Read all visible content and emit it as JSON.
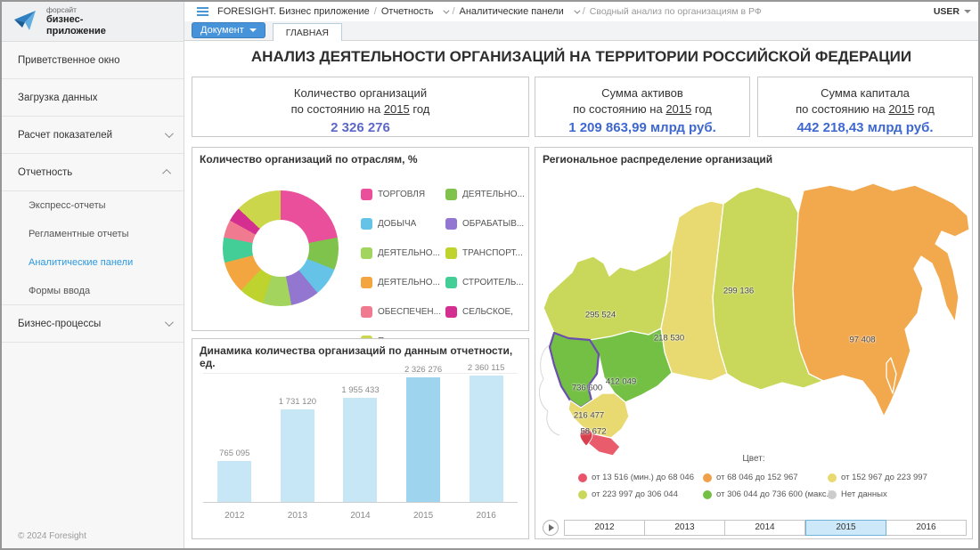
{
  "window": {
    "user_label": "USER"
  },
  "sidebar": {
    "brand_small": "форсайт",
    "brand_bold": "бизнес-приложение",
    "footer": "© 2024 Foresight",
    "items": [
      {
        "name": "welcome",
        "label": "Приветственное окно",
        "type": "item"
      },
      {
        "name": "data-load",
        "label": "Загрузка данных",
        "type": "item"
      },
      {
        "name": "indicators-calc",
        "label": "Расчет показателей",
        "type": "item",
        "chevron": "down"
      },
      {
        "name": "reporting",
        "label": "Отчетность",
        "type": "item",
        "chevron": "up"
      },
      {
        "name": "express-reports",
        "label": "Экспресс-отчеты",
        "type": "subitem"
      },
      {
        "name": "regulated-reports",
        "label": "Регламентные отчеты",
        "type": "subitem"
      },
      {
        "name": "analytic-panels",
        "label": "Аналитические панели",
        "type": "subitem",
        "active": true
      },
      {
        "name": "input-forms",
        "label": "Формы ввода",
        "type": "subitem"
      },
      {
        "name": "business-processes",
        "label": "Бизнес-процессы",
        "type": "item",
        "chevron": "down"
      }
    ]
  },
  "breadcrumb": {
    "segments": [
      {
        "label": "FORESIGHT. Бизнес приложение"
      },
      {
        "label": "Отчетность",
        "dropdown": true
      },
      {
        "label": "Аналитические панели",
        "dropdown": true
      },
      {
        "label": "Сводный анализ по организациям в РФ",
        "muted": true
      }
    ]
  },
  "toolbar": {
    "document_button": "Документ",
    "tab_main": "ГЛАВНАЯ"
  },
  "page": {
    "title": "АНАЛИЗ ДЕЯТЕЛЬНОСТИ ОРГАНИЗАЦИЙ НА ТЕРРИТОРИИ РОССИЙСКОЙ ФЕДЕРАЦИИ"
  },
  "kpis": [
    {
      "title": "Количество организаций",
      "prefix": "по состоянию на",
      "year": "2015",
      "suffix": "год",
      "value": "2 326 276",
      "color": "#5c68c9"
    },
    {
      "title": "Сумма активов",
      "prefix": "по состоянию на",
      "year": "2015",
      "suffix": "год",
      "value": "1 209 863,99 млрд руб.",
      "color": "#3e68cf"
    },
    {
      "title": "Сумма капитала",
      "prefix": "по состоянию на",
      "year": "2015",
      "suffix": "год",
      "value": "442 218,43 млрд руб.",
      "color": "#3e68cf"
    }
  ],
  "chart_data": [
    {
      "type": "pie",
      "donut": true,
      "title": "Количество организаций по отраслям, %",
      "legend_position": "right",
      "slices": [
        {
          "label": "ТОРГОВЛЯ",
          "value": 22,
          "color": "#ea4f9b"
        },
        {
          "label": "ДЕЯТЕЛЬНО...",
          "value": 9,
          "color": "#7fc24c"
        },
        {
          "label": "ДОБЫЧА",
          "value": 8,
          "color": "#66c3e8"
        },
        {
          "label": "ОБРАБАТЫВ...",
          "value": 8,
          "color": "#9276cf"
        },
        {
          "label": "ДЕЯТЕЛЬНО...",
          "value": 8,
          "color": "#a2d45e"
        },
        {
          "label": "ТРАНСПОРТ...",
          "value": 7,
          "color": "#bfd32f"
        },
        {
          "label": "ДЕЯТЕЛЬНО...",
          "value": 9,
          "color": "#f3a53f"
        },
        {
          "label": "СТРОИТЕЛЬ...",
          "value": 7,
          "color": "#43cd97"
        },
        {
          "label": "ОБЕСПЕЧЕН...",
          "value": 5,
          "color": "#f07b91"
        },
        {
          "label": "СЕЛЬСКОЕ,",
          "value": 4,
          "color": "#d42e90"
        },
        {
          "label": "Прочие",
          "value": 13,
          "color": "#ccd64a"
        }
      ]
    },
    {
      "type": "bar",
      "title": "Динамика количества организаций по данным отчетности, ед.",
      "categories": [
        "2012",
        "2013",
        "2014",
        "2015",
        "2016"
      ],
      "values": [
        765095,
        1731120,
        1955433,
        2326276,
        2360115
      ],
      "labels": [
        "765 095",
        "1 731 120",
        "1 955 433",
        "2 326 276",
        "2 360 115"
      ],
      "ylim": [
        0,
        2500000
      ],
      "bar_color": "#c7e6f6",
      "highlight_index": 3,
      "highlight_color": "#9fd4ee"
    },
    {
      "type": "map",
      "title": "Региональное распределение организаций",
      "legend_title": "Цвет:",
      "regions": [
        {
          "id": "northwest",
          "label": "295 524",
          "value": 295524,
          "color": "#c9d85a",
          "x": 72,
          "y": 170
        },
        {
          "id": "central",
          "label": "736 600",
          "value": 736600,
          "color": "#74c044",
          "x": 57,
          "y": 252,
          "selected": true
        },
        {
          "id": "volga",
          "label": "412 049",
          "value": 412049,
          "color": "#74c044",
          "x": 95,
          "y": 245
        },
        {
          "id": "south",
          "label": "216 477",
          "value": 216477,
          "color": "#e8da70",
          "x": 59,
          "y": 283
        },
        {
          "id": "caucasus",
          "label": "58 672",
          "value": 58672,
          "color": "#e85c6c",
          "x": 64,
          "y": 301
        },
        {
          "id": "ural",
          "label": "218 530",
          "value": 218530,
          "color": "#e8da70",
          "x": 149,
          "y": 196
        },
        {
          "id": "siberia",
          "label": "299 136",
          "value": 299136,
          "color": "#c9d85a",
          "x": 227,
          "y": 143
        },
        {
          "id": "far-east",
          "label": "97 408",
          "value": 97408,
          "color": "#f2a94e",
          "x": 366,
          "y": 198
        }
      ],
      "legend": [
        {
          "label": "от 13 516 (мин.) до 68 046",
          "color": "#e8556a"
        },
        {
          "label": "от 68 046 до 152 967",
          "color": "#f0a04a"
        },
        {
          "label": "от 152 967 до 223 997",
          "color": "#e8da70"
        },
        {
          "label": "от 223 997 до 306 044",
          "color": "#c9d85a"
        },
        {
          "label": "от 306 044 до 736 600 (макс.)",
          "color": "#74c044"
        },
        {
          "label": "Нет данных",
          "color": "#cccccc"
        }
      ],
      "years": [
        "2012",
        "2013",
        "2014",
        "2015",
        "2016"
      ],
      "selected_year": "2015"
    }
  ]
}
